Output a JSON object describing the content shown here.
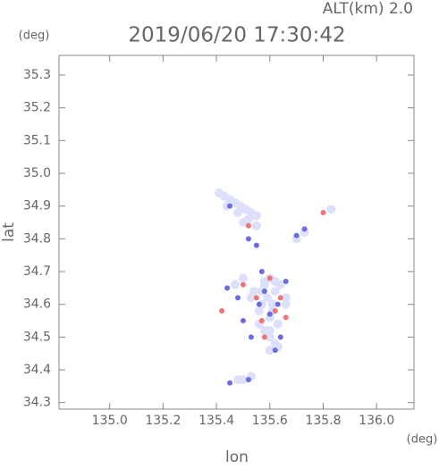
{
  "chart_data": {
    "type": "scatter",
    "title": "2019/06/20 17:30:42",
    "subtitle": "ALT(km) 2.0",
    "y_unit": "(deg)",
    "x_unit": "(deg)",
    "ylabel": "lat",
    "xlabel": "lon",
    "xlim": [
      134.81,
      136.14
    ],
    "ylim": [
      34.28,
      35.36
    ],
    "xticks": [
      {
        "value": 135,
        "label": "135.0"
      },
      135.2,
      135.4,
      135.6,
      135.8,
      {
        "value": 136,
        "label": "136.0"
      }
    ],
    "yticks": [
      34.3,
      34.4,
      34.5,
      34.6,
      34.7,
      34.8,
      34.9,
      {
        "value": 35,
        "label": "35.0"
      },
      35.1,
      35.2,
      35.3
    ],
    "grid": false,
    "series": [
      {
        "color": "#dde0fb",
        "x": [
          135.41,
          135.43,
          135.45,
          135.47,
          135.49,
          135.51,
          135.53,
          135.55,
          135.44,
          135.48,
          135.52,
          135.5,
          135.55,
          135.58,
          135.6,
          135.62,
          135.64,
          135.57,
          135.59,
          135.61,
          135.56,
          135.6,
          135.63,
          135.66,
          135.53,
          135.57,
          135.61,
          135.58,
          135.6,
          135.62,
          135.47,
          135.5,
          135.54,
          135.58,
          135.62,
          135.66,
          135.56,
          135.6,
          135.6,
          135.63,
          135.83,
          135.7,
          135.73,
          135.48,
          135.5,
          135.53
        ],
        "values": [
          34.94,
          34.93,
          34.92,
          34.91,
          34.9,
          34.89,
          34.88,
          34.87,
          34.9,
          34.88,
          34.86,
          34.85,
          34.84,
          34.67,
          34.68,
          34.67,
          34.66,
          34.64,
          34.62,
          34.6,
          34.58,
          34.56,
          34.54,
          34.6,
          34.62,
          34.6,
          34.58,
          34.52,
          34.5,
          34.48,
          34.66,
          34.68,
          34.64,
          34.66,
          34.64,
          34.62,
          34.54,
          34.52,
          34.46,
          34.47,
          34.89,
          34.8,
          34.82,
          34.37,
          34.37,
          34.38
        ]
      },
      {
        "color": "#6b6be6",
        "x": [
          135.45,
          135.52,
          135.55,
          135.7,
          135.5,
          135.62,
          135.56,
          135.45,
          135.52,
          135.58,
          135.64,
          135.66,
          135.44,
          135.6,
          135.73,
          135.57,
          135.53,
          135.63,
          135.48
        ],
        "values": [
          34.9,
          34.8,
          34.78,
          34.81,
          34.55,
          34.46,
          34.6,
          34.36,
          34.37,
          34.64,
          34.5,
          34.67,
          34.65,
          34.57,
          34.83,
          34.7,
          34.5,
          34.6,
          34.62
        ]
      },
      {
        "color": "#f07474",
        "x": [
          135.8,
          135.42,
          135.6,
          135.62,
          135.55,
          135.58,
          135.64,
          135.5,
          135.66,
          135.52,
          135.57
        ],
        "values": [
          34.88,
          34.58,
          34.68,
          34.58,
          34.62,
          34.5,
          34.62,
          34.66,
          34.56,
          34.84,
          34.55
        ]
      }
    ]
  }
}
